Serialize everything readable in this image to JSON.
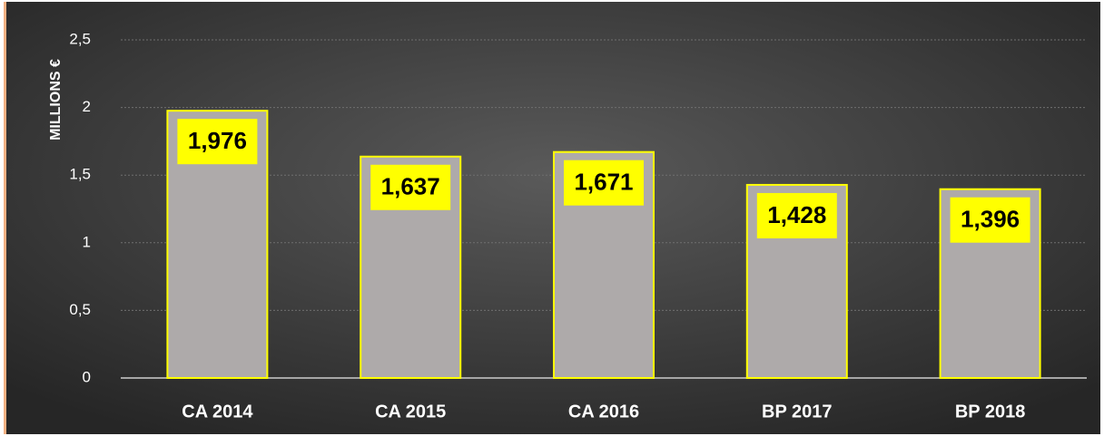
{
  "chart_data": {
    "type": "bar",
    "y_label": "MILLIONS €",
    "categories": [
      "CA 2014",
      "CA 2015",
      "CA 2016",
      "BP 2017",
      "BP 2018"
    ],
    "values": [
      1.976,
      1.637,
      1.671,
      1.428,
      1.396
    ],
    "value_labels": [
      "1,976",
      "1,637",
      "1,671",
      "1,428",
      "1,396"
    ],
    "color": "#aeaaaa",
    "edge_color": "#ffff00",
    "label_color": "#ffff00",
    "ylim": [
      0,
      2.5
    ],
    "yticks": [
      0,
      {
        "value": 0.5,
        "label": "0,5"
      },
      1,
      {
        "value": 1.5,
        "label": "1,5"
      },
      2,
      {
        "value": 2.5,
        "label": "2,5"
      }
    ],
    "grid": true
  }
}
